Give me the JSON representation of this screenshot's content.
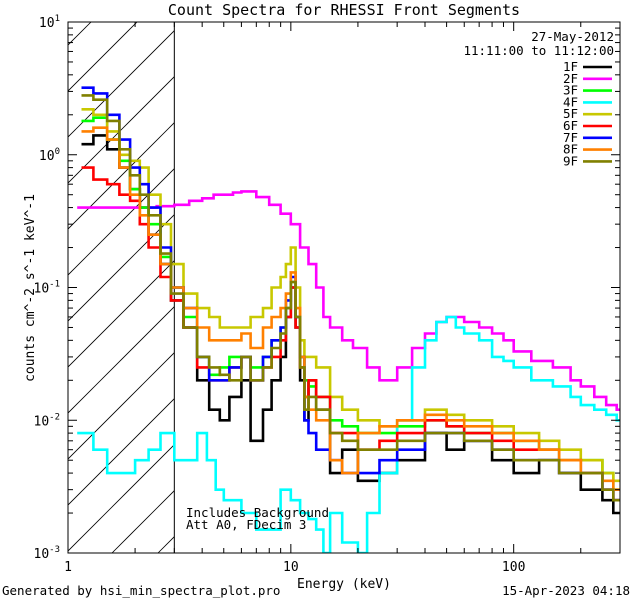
{
  "chart_data": {
    "type": "line",
    "title": "Count Spectra for RHESSI Front Segments",
    "xlabel": "Energy (keV)",
    "ylabel": "counts cm^-2 s^-1 keV^-1",
    "x_scale": "log",
    "y_scale": "log",
    "xlim": [
      1,
      300
    ],
    "ylim": [
      0.001,
      10
    ],
    "x_ticks": [
      {
        "value": 1,
        "label": "1"
      },
      {
        "value": 10,
        "label": "10"
      },
      {
        "value": 100,
        "label": "100"
      }
    ],
    "y_ticks": [
      {
        "value": 0.001,
        "base": "10",
        "exp": "-3"
      },
      {
        "value": 0.01,
        "base": "10",
        "exp": "-2"
      },
      {
        "value": 0.1,
        "base": "10",
        "exp": "-1"
      },
      {
        "value": 1,
        "base": "10",
        "exp": "0"
      },
      {
        "value": 10,
        "base": "10",
        "exp": "1"
      }
    ],
    "date": "27-May-2012",
    "time_range": "11:11:00 to 11:12:00",
    "hatched_region": {
      "x_from": 1,
      "x_to": 3,
      "meaning": "excluded low-energy band"
    },
    "annotations": [
      "Includes Background",
      "Att A0, FDecim 3"
    ],
    "series": [
      {
        "name": "1F",
        "color": "#000000",
        "x": [
          1.15,
          1.3,
          1.5,
          1.7,
          1.9,
          2.1,
          2.3,
          2.6,
          2.9,
          3.3,
          3.8,
          4.3,
          4.8,
          5.3,
          6,
          6.6,
          7.5,
          8.2,
          9,
          9.5,
          10,
          10.5,
          11,
          11.5,
          12,
          13,
          15,
          17,
          20,
          25,
          30,
          40,
          50,
          60,
          80,
          100,
          130,
          160,
          200,
          250,
          280
        ],
        "y": [
          1.2,
          1.4,
          1.1,
          0.8,
          0.55,
          0.4,
          0.25,
          0.15,
          0.08,
          0.05,
          0.02,
          0.012,
          0.01,
          0.015,
          0.02,
          0.007,
          0.012,
          0.02,
          0.03,
          0.06,
          0.1,
          0.05,
          0.02,
          0.01,
          0.02,
          0.012,
          0.004,
          0.006,
          0.0035,
          0.004,
          0.005,
          0.008,
          0.006,
          0.007,
          0.005,
          0.004,
          0.005,
          0.004,
          0.003,
          0.0025,
          0.002
        ]
      },
      {
        "name": "2F",
        "color": "#ff00ff",
        "x": [
          1.1,
          1.5,
          2,
          2.5,
          3,
          3.5,
          4,
          4.5,
          5,
          5.5,
          6,
          7,
          8,
          9,
          10,
          11,
          12,
          13,
          14,
          15,
          17,
          19,
          22,
          25,
          30,
          35,
          40,
          45,
          50,
          55,
          60,
          70,
          80,
          90,
          100,
          120,
          150,
          180,
          200,
          230,
          260,
          290
        ],
        "y": [
          0.4,
          0.4,
          0.4,
          0.41,
          0.42,
          0.45,
          0.47,
          0.5,
          0.5,
          0.52,
          0.53,
          0.48,
          0.42,
          0.36,
          0.3,
          0.2,
          0.15,
          0.1,
          0.06,
          0.05,
          0.04,
          0.035,
          0.025,
          0.02,
          0.025,
          0.035,
          0.045,
          0.055,
          0.06,
          0.06,
          0.055,
          0.05,
          0.045,
          0.04,
          0.033,
          0.028,
          0.025,
          0.02,
          0.018,
          0.015,
          0.013,
          0.012
        ]
      },
      {
        "name": "3F",
        "color": "#00ff00",
        "x": [
          1.15,
          1.3,
          1.5,
          1.7,
          1.9,
          2.1,
          2.3,
          2.6,
          2.9,
          3.3,
          3.8,
          4.3,
          4.8,
          5.3,
          6,
          6.6,
          7.5,
          8.2,
          9,
          9.5,
          10,
          10.5,
          11,
          11.5,
          12,
          13,
          15,
          17,
          20,
          25,
          30,
          40,
          50,
          60,
          80,
          100,
          130,
          160,
          200,
          250,
          280
        ],
        "y": [
          1.8,
          1.9,
          1.3,
          0.9,
          0.55,
          0.4,
          0.3,
          0.17,
          0.1,
          0.06,
          0.03,
          0.022,
          0.025,
          0.03,
          0.03,
          0.025,
          0.03,
          0.04,
          0.05,
          0.07,
          0.11,
          0.06,
          0.03,
          0.02,
          0.018,
          0.015,
          0.01,
          0.009,
          0.008,
          0.008,
          0.009,
          0.01,
          0.009,
          0.008,
          0.008,
          0.007,
          0.006,
          0.005,
          0.005,
          0.004,
          0.003
        ]
      },
      {
        "name": "4F",
        "color": "#00ffff",
        "x": [
          1.1,
          1.3,
          1.5,
          1.7,
          2,
          2.3,
          2.6,
          3,
          3.4,
          3.8,
          4.2,
          4.6,
          5,
          6,
          7,
          8,
          9,
          10,
          11,
          12,
          13,
          14,
          15,
          17,
          20,
          22,
          25,
          30,
          35,
          40,
          45,
          50,
          55,
          60,
          70,
          80,
          90,
          100,
          120,
          150,
          180,
          200,
          230,
          260,
          290
        ],
        "y": [
          0.008,
          0.006,
          0.004,
          0.004,
          0.005,
          0.006,
          0.008,
          0.005,
          0.005,
          0.008,
          0.005,
          0.003,
          0.0025,
          0.002,
          0.0015,
          0.0015,
          0.003,
          0.0025,
          0.002,
          0.0018,
          0.0015,
          0.001,
          0.002,
          0.0012,
          0.001,
          0.002,
          0.004,
          0.01,
          0.025,
          0.04,
          0.055,
          0.06,
          0.05,
          0.045,
          0.04,
          0.03,
          0.028,
          0.025,
          0.02,
          0.018,
          0.015,
          0.013,
          0.012,
          0.011,
          0.01
        ]
      },
      {
        "name": "5F",
        "color": "#c8c800",
        "x": [
          1.15,
          1.3,
          1.5,
          1.7,
          1.9,
          2.1,
          2.3,
          2.6,
          2.9,
          3.3,
          3.8,
          4.3,
          4.8,
          5.3,
          6,
          6.6,
          7.5,
          8.2,
          9,
          9.5,
          10,
          10.5,
          11,
          11.5,
          12,
          13,
          15,
          17,
          20,
          25,
          30,
          40,
          50,
          60,
          80,
          100,
          130,
          160,
          200,
          250,
          280
        ],
        "y": [
          2.2,
          2.0,
          1.5,
          1.0,
          0.9,
          0.8,
          0.5,
          0.3,
          0.15,
          0.09,
          0.07,
          0.06,
          0.05,
          0.05,
          0.05,
          0.06,
          0.07,
          0.1,
          0.12,
          0.15,
          0.2,
          0.1,
          0.04,
          0.03,
          0.03,
          0.025,
          0.015,
          0.012,
          0.01,
          0.009,
          0.01,
          0.012,
          0.011,
          0.01,
          0.009,
          0.008,
          0.007,
          0.006,
          0.005,
          0.004,
          0.0035
        ]
      },
      {
        "name": "6F",
        "color": "#ff0000",
        "x": [
          1.15,
          1.3,
          1.5,
          1.7,
          1.9,
          2.1,
          2.3,
          2.6,
          2.9,
          3.3,
          3.8,
          4.3,
          4.8,
          5.3,
          6,
          6.6,
          7.5,
          8.2,
          9,
          9.5,
          10,
          10.5,
          11,
          11.5,
          12,
          13,
          15,
          17,
          20,
          25,
          30,
          40,
          50,
          60,
          80,
          100,
          130,
          160,
          200,
          250,
          280
        ],
        "y": [
          0.8,
          0.65,
          0.6,
          0.5,
          0.45,
          0.3,
          0.2,
          0.12,
          0.08,
          0.05,
          0.025,
          0.02,
          0.02,
          0.025,
          0.03,
          0.02,
          0.025,
          0.03,
          0.04,
          0.06,
          0.1,
          0.05,
          0.025,
          0.015,
          0.02,
          0.015,
          0.008,
          0.008,
          0.006,
          0.007,
          0.008,
          0.01,
          0.009,
          0.008,
          0.007,
          0.006,
          0.006,
          0.005,
          0.004,
          0.003,
          0.0025
        ]
      },
      {
        "name": "7F",
        "color": "#0000ff",
        "x": [
          1.15,
          1.3,
          1.5,
          1.7,
          1.9,
          2.1,
          2.3,
          2.6,
          2.9,
          3.3,
          3.8,
          4.3,
          4.8,
          5.3,
          6,
          6.6,
          7.5,
          8.2,
          9,
          9.5,
          10,
          10.5,
          11,
          11.5,
          12,
          13,
          15,
          17,
          20,
          25,
          30,
          40,
          50,
          60,
          80,
          100,
          130,
          160,
          200,
          250,
          280
        ],
        "y": [
          3.2,
          2.9,
          2.0,
          1.3,
          0.8,
          0.6,
          0.4,
          0.2,
          0.1,
          0.07,
          0.03,
          0.02,
          0.02,
          0.025,
          0.03,
          0.02,
          0.03,
          0.04,
          0.05,
          0.08,
          0.12,
          0.06,
          0.03,
          0.01,
          0.008,
          0.006,
          0.005,
          0.004,
          0.004,
          0.005,
          0.006,
          0.008,
          0.008,
          0.007,
          0.006,
          0.005,
          0.005,
          0.004,
          0.004,
          0.003,
          0.0025
        ]
      },
      {
        "name": "8F",
        "color": "#ff8000",
        "x": [
          1.15,
          1.3,
          1.5,
          1.7,
          1.9,
          2.1,
          2.3,
          2.6,
          2.9,
          3.3,
          3.8,
          4.3,
          4.8,
          5.3,
          6,
          6.6,
          7.5,
          8.2,
          9,
          9.5,
          10,
          10.5,
          11,
          11.5,
          12,
          13,
          15,
          17,
          20,
          25,
          30,
          40,
          50,
          60,
          80,
          100,
          130,
          160,
          200,
          250,
          280
        ],
        "y": [
          1.5,
          1.6,
          1.3,
          0.8,
          0.5,
          0.35,
          0.25,
          0.15,
          0.1,
          0.07,
          0.05,
          0.04,
          0.04,
          0.04,
          0.045,
          0.035,
          0.05,
          0.06,
          0.07,
          0.09,
          0.13,
          0.07,
          0.03,
          0.015,
          0.012,
          0.01,
          0.005,
          0.004,
          0.008,
          0.009,
          0.01,
          0.011,
          0.01,
          0.009,
          0.008,
          0.007,
          0.006,
          0.005,
          0.004,
          0.0035,
          0.003
        ]
      },
      {
        "name": "9F",
        "color": "#808000",
        "x": [
          1.15,
          1.3,
          1.5,
          1.7,
          1.9,
          2.1,
          2.3,
          2.6,
          2.9,
          3.3,
          3.8,
          4.3,
          4.8,
          5.3,
          6,
          6.6,
          7.5,
          8.2,
          9,
          9.5,
          10,
          10.5,
          11,
          11.5,
          12,
          13,
          15,
          17,
          20,
          25,
          30,
          40,
          50,
          60,
          80,
          100,
          130,
          160,
          200,
          250,
          280
        ],
        "y": [
          2.8,
          2.6,
          1.8,
          1.1,
          0.7,
          0.5,
          0.35,
          0.18,
          0.09,
          0.05,
          0.03,
          0.025,
          0.022,
          0.02,
          0.03,
          0.02,
          0.025,
          0.035,
          0.045,
          0.07,
          0.11,
          0.06,
          0.025,
          0.012,
          0.015,
          0.012,
          0.008,
          0.007,
          0.006,
          0.006,
          0.007,
          0.008,
          0.008,
          0.007,
          0.006,
          0.005,
          0.005,
          0.004,
          0.004,
          0.003,
          0.0025
        ]
      }
    ]
  },
  "footer": {
    "left": "Generated by hsi_min_spectra_plot.pro",
    "right": "15-Apr-2023 04:18"
  }
}
